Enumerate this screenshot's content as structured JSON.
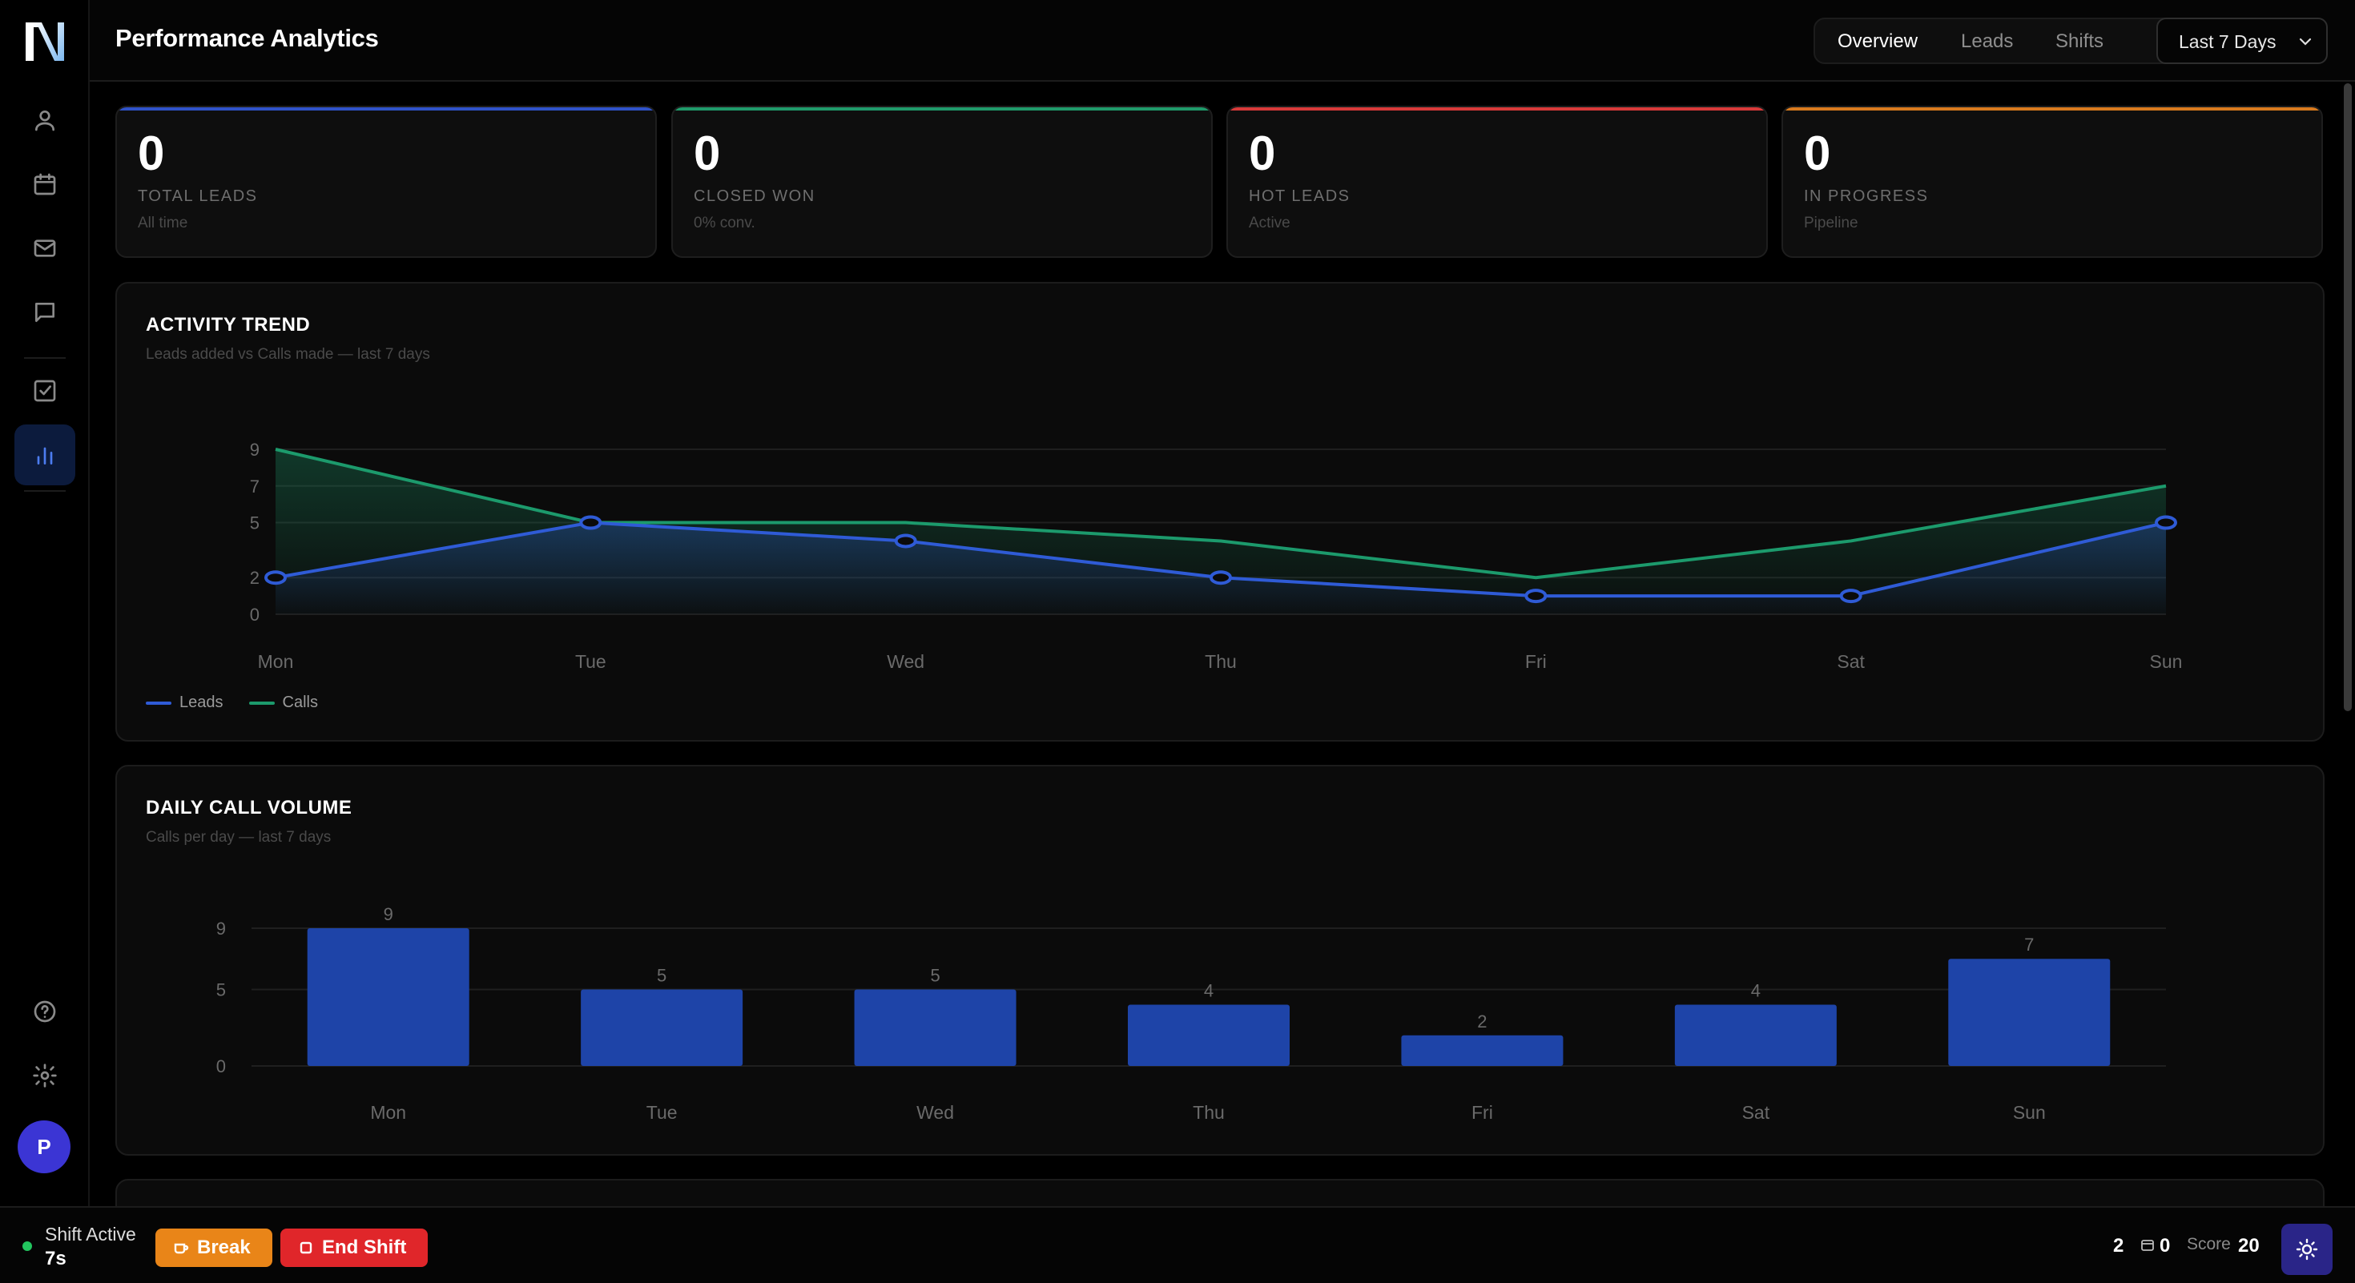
{
  "header": {
    "title": "Performance Analytics",
    "tabs": [
      {
        "label": "Overview",
        "active": true
      },
      {
        "label": "Leads",
        "active": false
      },
      {
        "label": "Shifts",
        "active": false
      }
    ],
    "range_select": "Last 7 Days"
  },
  "sidebar": {
    "items": [
      {
        "icon": "user-icon"
      },
      {
        "icon": "calendar-icon"
      },
      {
        "icon": "mail-icon"
      },
      {
        "icon": "chat-icon"
      },
      {
        "icon": "checkbox-icon"
      },
      {
        "icon": "bar-chart-icon",
        "active": true
      }
    ],
    "bottom_items": [
      {
        "icon": "help-icon"
      },
      {
        "icon": "gear-icon"
      }
    ],
    "avatar": "P"
  },
  "stats": [
    {
      "value": "0",
      "label": "TOTAL LEADS",
      "sub": "All time",
      "color": "#2f52c8"
    },
    {
      "value": "0",
      "label": "CLOSED WON",
      "sub": "0% conv.",
      "color": "#1f9a6a"
    },
    {
      "value": "0",
      "label": "HOT LEADS",
      "sub": "Active",
      "color": "#d83a3a"
    },
    {
      "value": "0",
      "label": "IN PROGRESS",
      "sub": "Pipeline",
      "color": "#d87a1e"
    }
  ],
  "activity_panel": {
    "title": "ACTIVITY TREND",
    "subtitle": "Leads added vs Calls made — last 7 days",
    "legend": [
      "Leads",
      "Calls"
    ]
  },
  "volume_panel": {
    "title": "DAILY CALL VOLUME",
    "subtitle": "Calls per day — last 7 days"
  },
  "chart_data": [
    {
      "type": "line",
      "title": "ACTIVITY TREND",
      "categories": [
        "Mon",
        "Tue",
        "Wed",
        "Thu",
        "Fri",
        "Sat",
        "Sun"
      ],
      "yticks": [
        "0",
        "2",
        "5",
        "7",
        "9"
      ],
      "ylim": [
        0,
        9
      ],
      "series": [
        {
          "name": "Leads",
          "values": [
            2,
            5,
            4,
            2,
            1,
            1,
            5
          ],
          "color": "#2f5bd6"
        },
        {
          "name": "Calls",
          "values": [
            9,
            5,
            5,
            4,
            2,
            4,
            7
          ],
          "color": "#1c9a6c"
        }
      ],
      "grid": true,
      "legend": "bottom-left"
    },
    {
      "type": "bar",
      "title": "DAILY CALL VOLUME",
      "categories": [
        "Mon",
        "Tue",
        "Wed",
        "Thu",
        "Fri",
        "Sat",
        "Sun"
      ],
      "values": [
        9,
        5,
        5,
        4,
        2,
        4,
        7
      ],
      "yticks": [
        "0",
        "5",
        "9"
      ],
      "ylim": [
        0,
        9
      ],
      "color": "#1e44a8",
      "grid": true
    }
  ],
  "bottombar": {
    "shift_status": "Shift Active",
    "shift_time": "7s",
    "break_label": "Break",
    "end_label": "End Shift",
    "count_a": "2",
    "count_b": "0",
    "score_label": "Score",
    "score_value": "20"
  }
}
